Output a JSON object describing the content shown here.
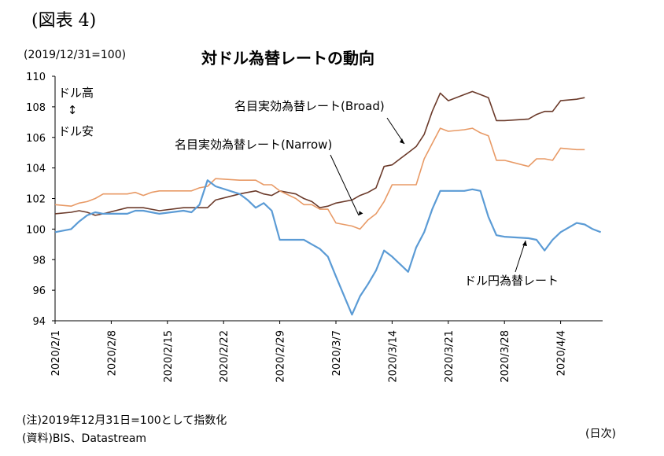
{
  "figure_label": "(図表 4)",
  "base_note": "(2019/12/31=100)",
  "notes": {
    "note1": "(注)2019年12月31日=100として指数化",
    "note2": "(資料)BIS、Datastream"
  },
  "unit_label": "(日次)",
  "colors": {
    "broad": "#6b3a2a",
    "narrow": "#e89a66",
    "usdjpy": "#5b9bd5",
    "axis": "#000000"
  },
  "chart_data": {
    "type": "line",
    "title": "対ドル為替レートの動向",
    "ylim": [
      94,
      110
    ],
    "y_ticks": [
      94,
      96,
      98,
      100,
      102,
      104,
      106,
      108,
      110
    ],
    "x_tick_labels": [
      "2020/2/1",
      "2020/2/8",
      "2020/2/15",
      "2020/2/22",
      "2020/2/29",
      "2020/3/7",
      "2020/3/14",
      "2020/3/21",
      "2020/3/28",
      "2020/4/4"
    ],
    "grid": false,
    "legend": "inline annotations",
    "direction_labels": {
      "up": "ドル高",
      "arrow": "↕",
      "down": "ドル安"
    },
    "x_start": "2020-02-01",
    "series": [
      {
        "name": "名目実効為替レート(Broad)",
        "key": "broad",
        "points": [
          [
            "2020-02-01",
            101.0
          ],
          [
            "2020-02-03",
            101.1
          ],
          [
            "2020-02-04",
            101.2
          ],
          [
            "2020-02-05",
            101.1
          ],
          [
            "2020-02-06",
            100.9
          ],
          [
            "2020-02-07",
            101.0
          ],
          [
            "2020-02-10",
            101.4
          ],
          [
            "2020-02-11",
            101.4
          ],
          [
            "2020-02-12",
            101.4
          ],
          [
            "2020-02-13",
            101.3
          ],
          [
            "2020-02-14",
            101.2
          ],
          [
            "2020-02-17",
            101.4
          ],
          [
            "2020-02-18",
            101.4
          ],
          [
            "2020-02-19",
            101.4
          ],
          [
            "2020-02-20",
            101.4
          ],
          [
            "2020-02-21",
            101.9
          ],
          [
            "2020-02-24",
            102.3
          ],
          [
            "2020-02-25",
            102.4
          ],
          [
            "2020-02-26",
            102.5
          ],
          [
            "2020-02-27",
            102.3
          ],
          [
            "2020-02-28",
            102.2
          ],
          [
            "2020-02-29",
            102.5
          ],
          [
            "2020-03-02",
            102.3
          ],
          [
            "2020-03-03",
            102.0
          ],
          [
            "2020-03-04",
            101.8
          ],
          [
            "2020-03-05",
            101.4
          ],
          [
            "2020-03-06",
            101.5
          ],
          [
            "2020-03-07",
            101.7
          ],
          [
            "2020-03-09",
            101.9
          ],
          [
            "2020-03-10",
            102.2
          ],
          [
            "2020-03-11",
            102.4
          ],
          [
            "2020-03-12",
            102.7
          ],
          [
            "2020-03-13",
            104.1
          ],
          [
            "2020-03-14",
            104.2
          ],
          [
            "2020-03-16",
            105.0
          ],
          [
            "2020-03-17",
            105.4
          ],
          [
            "2020-03-18",
            106.2
          ],
          [
            "2020-03-19",
            107.7
          ],
          [
            "2020-03-20",
            108.9
          ],
          [
            "2020-03-21",
            108.4
          ],
          [
            "2020-03-23",
            108.8
          ],
          [
            "2020-03-24",
            109.0
          ],
          [
            "2020-03-25",
            108.8
          ],
          [
            "2020-03-26",
            108.6
          ],
          [
            "2020-03-27",
            107.1
          ],
          [
            "2020-03-28",
            107.1
          ],
          [
            "2020-03-31",
            107.2
          ],
          [
            "2020-04-01",
            107.5
          ],
          [
            "2020-04-02",
            107.7
          ],
          [
            "2020-04-03",
            107.7
          ],
          [
            "2020-04-04",
            108.4
          ],
          [
            "2020-04-06",
            108.5
          ],
          [
            "2020-04-07",
            108.6
          ]
        ]
      },
      {
        "name": "名目実効為替レート(Narrow)",
        "key": "narrow",
        "points": [
          [
            "2020-02-01",
            101.6
          ],
          [
            "2020-02-03",
            101.5
          ],
          [
            "2020-02-04",
            101.7
          ],
          [
            "2020-02-05",
            101.8
          ],
          [
            "2020-02-06",
            102.0
          ],
          [
            "2020-02-07",
            102.3
          ],
          [
            "2020-02-10",
            102.3
          ],
          [
            "2020-02-11",
            102.4
          ],
          [
            "2020-02-12",
            102.2
          ],
          [
            "2020-02-13",
            102.4
          ],
          [
            "2020-02-14",
            102.5
          ],
          [
            "2020-02-17",
            102.5
          ],
          [
            "2020-02-18",
            102.5
          ],
          [
            "2020-02-19",
            102.7
          ],
          [
            "2020-02-20",
            102.8
          ],
          [
            "2020-02-21",
            103.3
          ],
          [
            "2020-02-24",
            103.2
          ],
          [
            "2020-02-25",
            103.2
          ],
          [
            "2020-02-26",
            103.2
          ],
          [
            "2020-02-27",
            102.9
          ],
          [
            "2020-02-28",
            102.9
          ],
          [
            "2020-02-29",
            102.5
          ],
          [
            "2020-03-02",
            102.0
          ],
          [
            "2020-03-03",
            101.6
          ],
          [
            "2020-03-04",
            101.6
          ],
          [
            "2020-03-05",
            101.3
          ],
          [
            "2020-03-06",
            101.3
          ],
          [
            "2020-03-07",
            100.4
          ],
          [
            "2020-03-09",
            100.2
          ],
          [
            "2020-03-10",
            100.0
          ],
          [
            "2020-03-11",
            100.6
          ],
          [
            "2020-03-12",
            101.0
          ],
          [
            "2020-03-13",
            101.8
          ],
          [
            "2020-03-14",
            102.9
          ],
          [
            "2020-03-16",
            102.9
          ],
          [
            "2020-03-17",
            102.9
          ],
          [
            "2020-03-18",
            104.6
          ],
          [
            "2020-03-19",
            105.6
          ],
          [
            "2020-03-20",
            106.6
          ],
          [
            "2020-03-21",
            106.4
          ],
          [
            "2020-03-23",
            106.5
          ],
          [
            "2020-03-24",
            106.6
          ],
          [
            "2020-03-25",
            106.3
          ],
          [
            "2020-03-26",
            106.1
          ],
          [
            "2020-03-27",
            104.5
          ],
          [
            "2020-03-28",
            104.5
          ],
          [
            "2020-03-31",
            104.1
          ],
          [
            "2020-04-01",
            104.6
          ],
          [
            "2020-04-02",
            104.6
          ],
          [
            "2020-04-03",
            104.5
          ],
          [
            "2020-04-04",
            105.3
          ],
          [
            "2020-04-06",
            105.2
          ],
          [
            "2020-04-07",
            105.2
          ]
        ]
      },
      {
        "name": "ドル円為替レート",
        "key": "usdjpy",
        "points": [
          [
            "2020-02-01",
            99.8
          ],
          [
            "2020-02-03",
            100.0
          ],
          [
            "2020-02-04",
            100.5
          ],
          [
            "2020-02-05",
            100.9
          ],
          [
            "2020-02-06",
            101.1
          ],
          [
            "2020-02-07",
            101.0
          ],
          [
            "2020-02-10",
            101.0
          ],
          [
            "2020-02-11",
            101.2
          ],
          [
            "2020-02-12",
            101.2
          ],
          [
            "2020-02-13",
            101.1
          ],
          [
            "2020-02-14",
            101.0
          ],
          [
            "2020-02-17",
            101.2
          ],
          [
            "2020-02-18",
            101.1
          ],
          [
            "2020-02-19",
            101.6
          ],
          [
            "2020-02-20",
            103.2
          ],
          [
            "2020-02-21",
            102.8
          ],
          [
            "2020-02-24",
            102.3
          ],
          [
            "2020-02-25",
            101.9
          ],
          [
            "2020-02-26",
            101.4
          ],
          [
            "2020-02-27",
            101.7
          ],
          [
            "2020-02-28",
            101.2
          ],
          [
            "2020-02-29",
            99.3
          ],
          [
            "2020-03-02",
            99.3
          ],
          [
            "2020-03-03",
            99.3
          ],
          [
            "2020-03-04",
            99.0
          ],
          [
            "2020-03-05",
            98.7
          ],
          [
            "2020-03-06",
            98.2
          ],
          [
            "2020-03-07",
            96.9
          ],
          [
            "2020-03-09",
            94.4
          ],
          [
            "2020-03-10",
            95.6
          ],
          [
            "2020-03-11",
            96.4
          ],
          [
            "2020-03-12",
            97.3
          ],
          [
            "2020-03-13",
            98.6
          ],
          [
            "2020-03-14",
            98.2
          ],
          [
            "2020-03-16",
            97.2
          ],
          [
            "2020-03-17",
            98.8
          ],
          [
            "2020-03-18",
            99.8
          ],
          [
            "2020-03-19",
            101.3
          ],
          [
            "2020-03-20",
            102.5
          ],
          [
            "2020-03-21",
            102.5
          ],
          [
            "2020-03-23",
            102.5
          ],
          [
            "2020-03-24",
            102.6
          ],
          [
            "2020-03-25",
            102.5
          ],
          [
            "2020-03-26",
            100.8
          ],
          [
            "2020-03-27",
            99.6
          ],
          [
            "2020-03-28",
            99.5
          ],
          [
            "2020-03-31",
            99.4
          ],
          [
            "2020-04-01",
            99.3
          ],
          [
            "2020-04-02",
            98.6
          ],
          [
            "2020-04-03",
            99.3
          ],
          [
            "2020-04-04",
            99.8
          ],
          [
            "2020-04-06",
            100.4
          ],
          [
            "2020-04-07",
            100.3
          ],
          [
            "2020-04-08",
            100.0
          ],
          [
            "2020-04-09",
            99.8
          ]
        ]
      }
    ]
  }
}
